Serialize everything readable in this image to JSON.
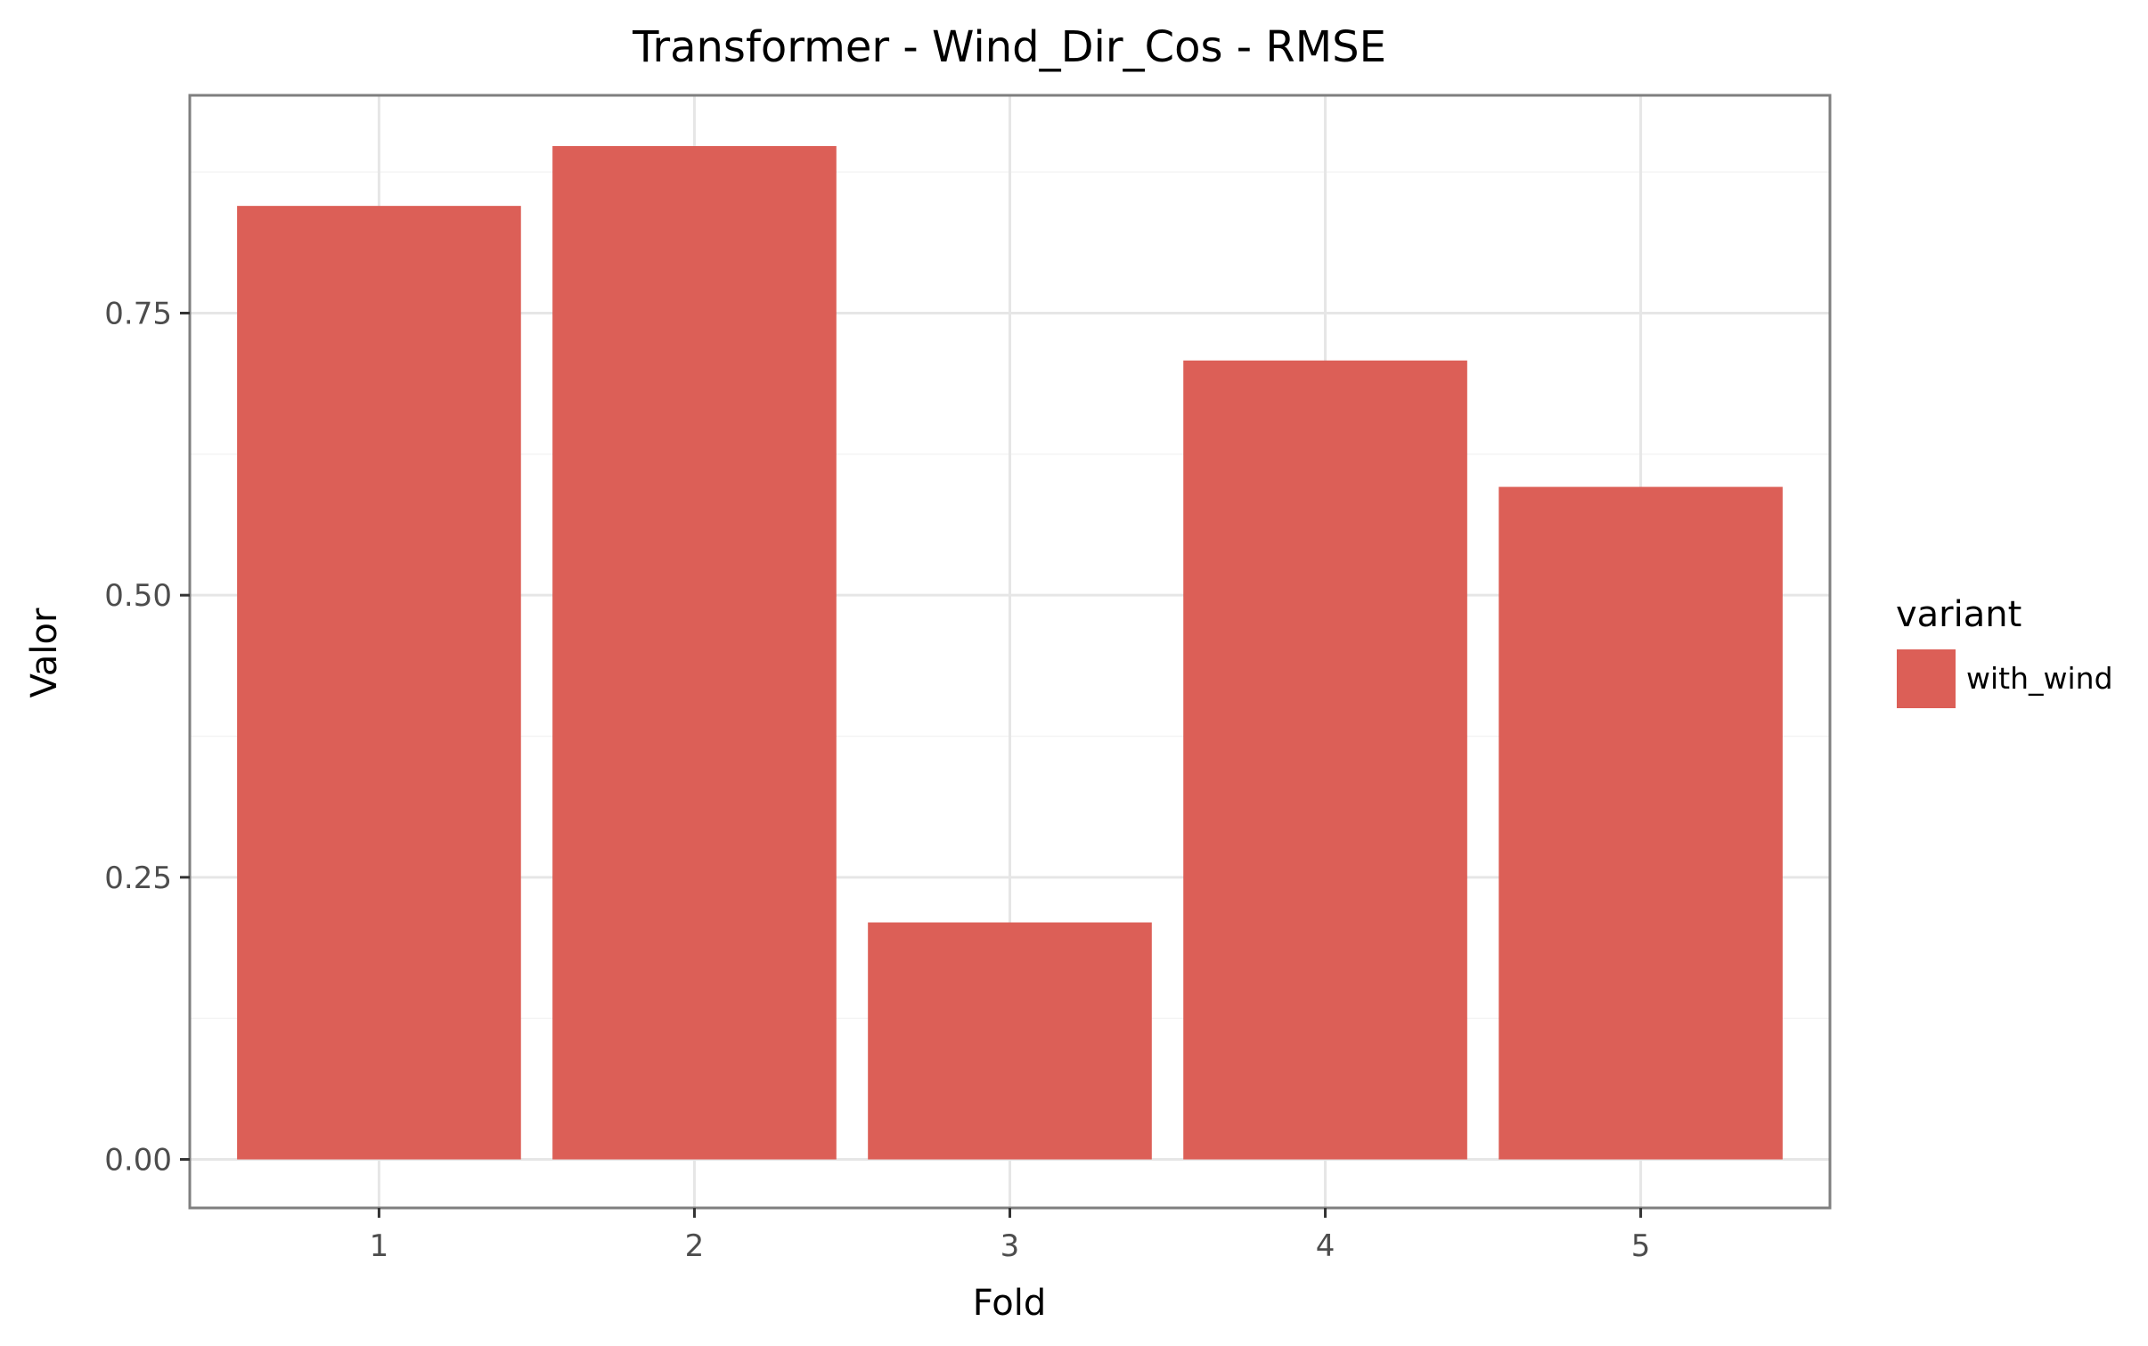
{
  "chart_data": {
    "type": "bar",
    "title": "Transformer - Wind_Dir_Cos - RMSE",
    "xlabel": "Fold",
    "ylabel": "Valor",
    "categories": [
      "1",
      "2",
      "3",
      "4",
      "5"
    ],
    "series": [
      {
        "name": "with_wind",
        "values": [
          0.845,
          0.898,
          0.21,
          0.708,
          0.596
        ]
      }
    ],
    "ylim": [
      -0.043,
      0.943
    ],
    "yticks": [
      0.0,
      0.25,
      0.5,
      0.75
    ],
    "ytick_labels": [
      "0.00",
      "0.25",
      "0.50",
      "0.75"
    ],
    "grid": true,
    "legend": {
      "title": "variant",
      "position": "right"
    },
    "colors": {
      "bar": "#dc5f57",
      "panel_border": "#7f7f7f",
      "grid_major": "#e6e6e6",
      "grid_minor": "#f4f4f4"
    }
  }
}
